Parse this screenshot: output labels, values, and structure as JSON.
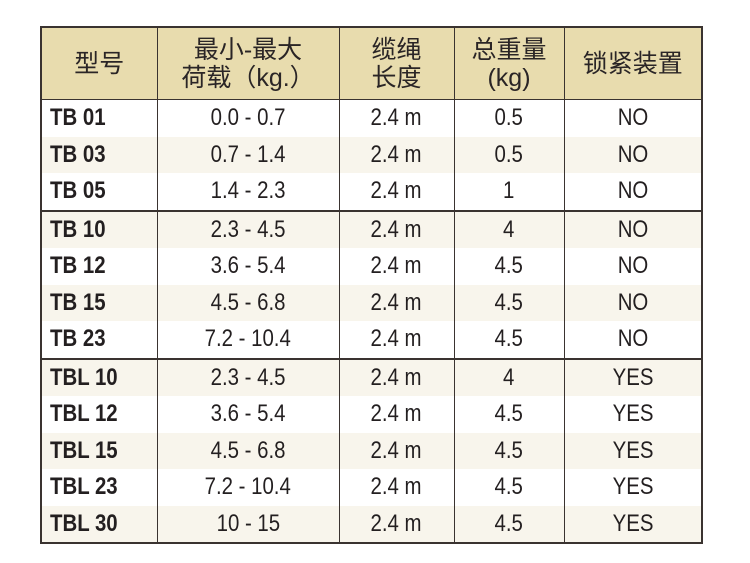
{
  "table": {
    "headers": [
      {
        "lines": [
          "型号"
        ]
      },
      {
        "lines": [
          "最小-最大",
          "荷载（kg.）"
        ]
      },
      {
        "lines": [
          "缆绳",
          "长度"
        ]
      },
      {
        "lines": [
          "总重量",
          "(kg)"
        ]
      },
      {
        "lines": [
          "锁紧装置"
        ]
      }
    ],
    "rows": [
      {
        "model": "TB 01",
        "load": "0.0 - 0.7",
        "length": "2.4 m",
        "weight": "0.5",
        "lock": "NO"
      },
      {
        "model": "TB 03",
        "load": "0.7 - 1.4",
        "length": "2.4 m",
        "weight": "0.5",
        "lock": "NO"
      },
      {
        "model": "TB 05",
        "load": "1.4 - 2.3",
        "length": "2.4 m",
        "weight": "1",
        "lock": "NO"
      },
      {
        "model": "TB 10",
        "load": "2.3 - 4.5",
        "length": "2.4 m",
        "weight": "4",
        "lock": "NO"
      },
      {
        "model": "TB 12",
        "load": "3.6 - 5.4",
        "length": "2.4 m",
        "weight": "4.5",
        "lock": "NO"
      },
      {
        "model": "TB 15",
        "load": "4.5 - 6.8",
        "length": "2.4 m",
        "weight": "4.5",
        "lock": "NO"
      },
      {
        "model": "TB 23",
        "load": "7.2 - 10.4",
        "length": "2.4 m",
        "weight": "4.5",
        "lock": "NO"
      },
      {
        "model": "TBL 10",
        "load": "2.3 - 4.5",
        "length": "2.4 m",
        "weight": "4",
        "lock": "YES"
      },
      {
        "model": "TBL 12",
        "load": "3.6 - 5.4",
        "length": "2.4 m",
        "weight": "4.5",
        "lock": "YES"
      },
      {
        "model": "TBL 15",
        "load": "4.5 - 6.8",
        "length": "2.4 m",
        "weight": "4.5",
        "lock": "YES"
      },
      {
        "model": "TBL 23",
        "load": "7.2 - 10.4",
        "length": "2.4 m",
        "weight": "4.5",
        "lock": "YES"
      },
      {
        "model": "TBL 30",
        "load": "10 - 15",
        "length": "2.4 m",
        "weight": "4.5",
        "lock": "YES"
      }
    ]
  },
  "colors": {
    "header_bg": "#e8dcae",
    "border": "#3a3330",
    "alt_row_bg": "#f8f5ec",
    "text": "#231f20"
  }
}
